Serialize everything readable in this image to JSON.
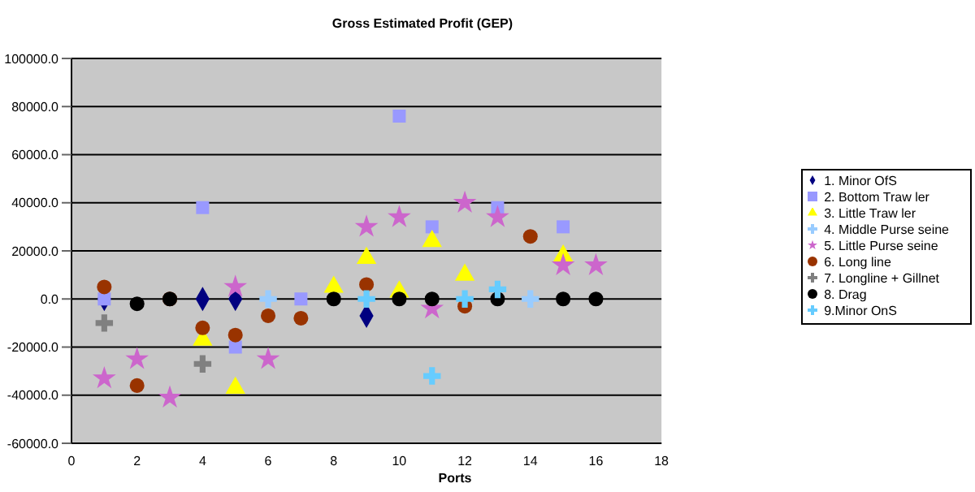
{
  "chart_data": {
    "type": "scatter",
    "title": "Gross Estimated Profit (GEP)",
    "xlabel": "Ports",
    "xlim": [
      0,
      18
    ],
    "xticks": [
      0,
      2,
      4,
      6,
      8,
      10,
      12,
      14,
      16,
      18
    ],
    "ylim": [
      -60000,
      100000
    ],
    "yticks": [
      {
        "value": -60000,
        "label": "-60000.0"
      },
      {
        "value": -40000,
        "label": "-40000.0"
      },
      {
        "value": -20000,
        "label": "-20000.0"
      },
      {
        "value": 0,
        "label": "0.0"
      },
      {
        "value": 20000,
        "label": "20000.0"
      },
      {
        "value": 40000,
        "label": "40000.0"
      },
      {
        "value": 60000,
        "label": "60000.0"
      },
      {
        "value": 80000,
        "label": "80000.0"
      },
      {
        "value": 100000,
        "label": "100000.0"
      }
    ],
    "grid": "y",
    "legend": "right",
    "series": [
      {
        "name": "1. Minor OfS",
        "color": "#000080",
        "marker": "diamond",
        "x": [
          1,
          4,
          5,
          9
        ],
        "values": [
          0,
          0,
          0,
          -7000
        ]
      },
      {
        "name": "2. Bottom Traw ler",
        "color": "#9999ff",
        "marker": "square",
        "x": [
          1,
          4,
          5,
          7,
          10,
          11,
          13,
          15
        ],
        "values": [
          0,
          38000,
          -20000,
          0,
          76000,
          30000,
          38000,
          30000
        ]
      },
      {
        "name": "3. Little Traw ler",
        "color": "#ffff00",
        "marker": "triangle",
        "x": [
          4,
          5,
          8,
          9,
          10,
          11,
          12,
          15
        ],
        "values": [
          -17000,
          -37000,
          5000,
          17000,
          3000,
          24000,
          10000,
          18000
        ]
      },
      {
        "name": "4. Middle Purse seine",
        "color": "#99ccff",
        "marker": "cross",
        "x": [
          6,
          14
        ],
        "values": [
          0,
          0
        ]
      },
      {
        "name": "5. Little Purse seine",
        "color": "#cc66cc",
        "marker": "star",
        "x": [
          1,
          2,
          3,
          5,
          6,
          9,
          10,
          11,
          12,
          13,
          15,
          16
        ],
        "values": [
          -33000,
          -25000,
          -41000,
          5000,
          -25000,
          30000,
          34000,
          -4000,
          40000,
          34000,
          14000,
          14000
        ]
      },
      {
        "name": "6. Long line",
        "color": "#993300",
        "marker": "circle",
        "x": [
          1,
          2,
          3,
          4,
          5,
          6,
          7,
          9,
          12,
          14
        ],
        "values": [
          5000,
          -36000,
          0,
          -12000,
          -15000,
          -7000,
          -8000,
          6000,
          -3000,
          26000
        ]
      },
      {
        "name": "7. Longline + Gillnet",
        "color": "#808080",
        "marker": "cross",
        "x": [
          1,
          4
        ],
        "values": [
          -10000,
          -27000
        ]
      },
      {
        "name": "8. Drag",
        "color": "#000000",
        "marker": "circle",
        "x": [
          2,
          3,
          8,
          10,
          11,
          13,
          15,
          16
        ],
        "values": [
          -2000,
          0,
          0,
          0,
          0,
          0,
          0,
          0
        ]
      },
      {
        "name": "9.Minor OnS",
        "color": "#66ccff",
        "marker": "cross",
        "x": [
          9,
          11,
          12,
          13
        ],
        "values": [
          0,
          -32000,
          0,
          4000
        ]
      }
    ]
  }
}
